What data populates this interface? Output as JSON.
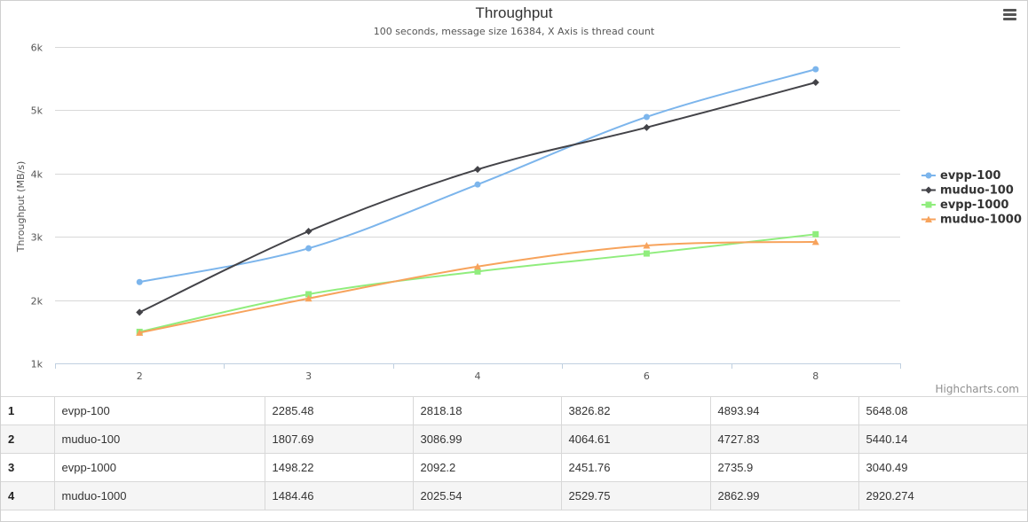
{
  "chart_data": {
    "type": "line",
    "title": "Throughput",
    "subtitle": "100 seconds, message size 16384, X Axis is thread count",
    "xlabel": "",
    "ylabel": "Throughput (MB/s)",
    "categories": [
      "2",
      "3",
      "4",
      "6",
      "8"
    ],
    "ylim": [
      1000,
      6000
    ],
    "yticks": [
      1000,
      2000,
      3000,
      4000,
      5000,
      6000
    ],
    "ytick_labels": [
      "1k",
      "2k",
      "3k",
      "4k",
      "5k",
      "6k"
    ],
    "grid": true,
    "legend_position": "right",
    "credits": "Highcharts.com",
    "series": [
      {
        "name": "evpp-100",
        "color": "#7cb5ec",
        "marker": "circle",
        "values": [
          2285.48,
          2818.18,
          3826.82,
          4893.94,
          5648.08
        ]
      },
      {
        "name": "muduo-100",
        "color": "#434348",
        "marker": "diamond",
        "values": [
          1807.69,
          3086.99,
          4064.61,
          4727.83,
          5440.14
        ]
      },
      {
        "name": "evpp-1000",
        "color": "#90ed7d",
        "marker": "square",
        "values": [
          1498.22,
          2092.2,
          2451.76,
          2735.9,
          3040.49
        ]
      },
      {
        "name": "muduo-1000",
        "color": "#f7a35c",
        "marker": "triangle",
        "values": [
          1484.46,
          2025.54,
          2529.75,
          2862.99,
          2920.274
        ]
      }
    ]
  },
  "table": {
    "rows": [
      {
        "index": "1",
        "name": "evpp-100",
        "cells": [
          "2285.48",
          "2818.18",
          "3826.82",
          "4893.94",
          "5648.08"
        ]
      },
      {
        "index": "2",
        "name": "muduo-100",
        "cells": [
          "1807.69",
          "3086.99",
          "4064.61",
          "4727.83",
          "5440.14"
        ]
      },
      {
        "index": "3",
        "name": "evpp-1000",
        "cells": [
          "1498.22",
          "2092.2",
          "2451.76",
          "2735.9",
          "3040.49"
        ]
      },
      {
        "index": "4",
        "name": "muduo-1000",
        "cells": [
          "1484.46",
          "2025.54",
          "2529.75",
          "2862.99",
          "2920.274"
        ]
      }
    ]
  },
  "icons": {
    "menu": "hamburger-menu-icon"
  }
}
